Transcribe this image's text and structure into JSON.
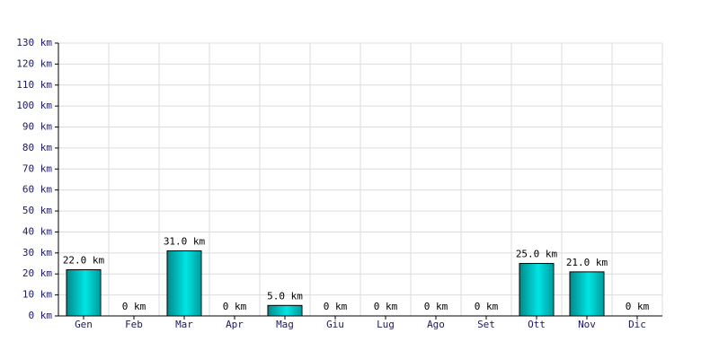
{
  "chart_data": {
    "type": "bar",
    "categories": [
      "Gen",
      "Feb",
      "Mar",
      "Apr",
      "Mag",
      "Giu",
      "Lug",
      "Ago",
      "Set",
      "Ott",
      "Nov",
      "Dic"
    ],
    "values": [
      22,
      0,
      31,
      0,
      5,
      0,
      0,
      0,
      0,
      25,
      21,
      0
    ],
    "value_labels": [
      "22.0 km",
      "0 km",
      "31.0 km",
      "0 km",
      "5.0 km",
      "0 km",
      "0 km",
      "0 km",
      "0 km",
      "25.0 km",
      "21.0 km",
      "0 km"
    ],
    "color": "#00e5e5",
    "ylim": [
      0,
      130
    ],
    "yticks": [
      {
        "value": 0,
        "label": "0 km"
      },
      {
        "value": 10,
        "label": "10 km"
      },
      {
        "value": 20,
        "label": "20 km"
      },
      {
        "value": 30,
        "label": "30 km"
      },
      {
        "value": 40,
        "label": "40 km"
      },
      {
        "value": 50,
        "label": "50 km"
      },
      {
        "value": 60,
        "label": "60 km"
      },
      {
        "value": 70,
        "label": "70 km"
      },
      {
        "value": 80,
        "label": "80 km"
      },
      {
        "value": 90,
        "label": "90 km"
      },
      {
        "value": 100,
        "label": "100 km"
      },
      {
        "value": 110,
        "label": "110 km"
      },
      {
        "value": 120,
        "label": "120 km"
      },
      {
        "value": 130,
        "label": "130 km"
      }
    ],
    "grid": true
  }
}
